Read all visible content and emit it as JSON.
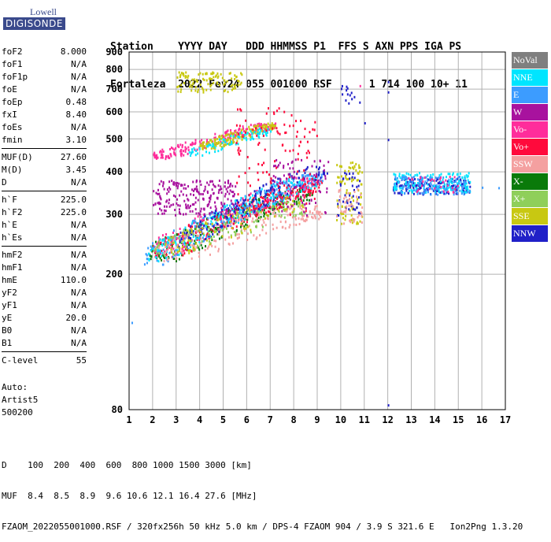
{
  "logo": {
    "line1": "Lowell",
    "line2": "DIGISONDE"
  },
  "header": {
    "line1": "Station    YYYY DAY   DDD HHMMSS P1  FFS S AXN PPS IGA PS",
    "line2": "Fortaleza  2022 Fev24 055 001000 RSF      1 714 100 10+ 11"
  },
  "params": {
    "group1": [
      {
        "k": "foF2",
        "v": "8.000"
      },
      {
        "k": "foF1",
        "v": "N/A"
      },
      {
        "k": "foF1p",
        "v": "N/A"
      },
      {
        "k": "foE",
        "v": "N/A"
      },
      {
        "k": "foEp",
        "v": "0.48"
      },
      {
        "k": "fxI",
        "v": "8.40"
      },
      {
        "k": "foEs",
        "v": "N/A"
      },
      {
        "k": "fmin",
        "v": "3.10"
      }
    ],
    "group2": [
      {
        "k": "MUF(D)",
        "v": "27.60"
      },
      {
        "k": "M(D)",
        "v": "3.45"
      },
      {
        "k": "D",
        "v": "N/A"
      }
    ],
    "group3": [
      {
        "k": "h`F",
        "v": "225.0"
      },
      {
        "k": "h`F2",
        "v": "225.0"
      },
      {
        "k": "h`E",
        "v": "N/A"
      },
      {
        "k": "h`Es",
        "v": "N/A"
      }
    ],
    "group4": [
      {
        "k": "hmF2",
        "v": "N/A"
      },
      {
        "k": "hmF1",
        "v": "N/A"
      },
      {
        "k": "hmE",
        "v": "110.0"
      },
      {
        "k": "yF2",
        "v": "N/A"
      },
      {
        "k": "yF1",
        "v": "N/A"
      },
      {
        "k": "yE",
        "v": "20.0"
      },
      {
        "k": "B0",
        "v": "N/A"
      },
      {
        "k": "B1",
        "v": "N/A"
      }
    ],
    "group5": [
      {
        "k": "C-level",
        "v": "55"
      }
    ]
  },
  "auto": {
    "line1": "Auto:",
    "line2": "Artist5",
    "line3": "500200"
  },
  "legend": [
    {
      "label": "NoVal",
      "color": "#7f7f7f"
    },
    {
      "label": "NNE",
      "color": "#00e5ff"
    },
    {
      "label": "E",
      "color": "#3c9cff"
    },
    {
      "label": "W",
      "color": "#a8129e"
    },
    {
      "label": "Vo-",
      "color": "#ff2d9b"
    },
    {
      "label": "Vo+",
      "color": "#ff0a3c"
    },
    {
      "label": "SSW",
      "color": "#f4a0a0"
    },
    {
      "label": "X-",
      "color": "#0a7a0a"
    },
    {
      "label": "X+",
      "color": "#8fcf5a"
    },
    {
      "label": "SSE",
      "color": "#c8c812"
    },
    {
      "label": "NNW",
      "color": "#2020c8"
    }
  ],
  "footer": {
    "line1": "D    100  200  400  600  800 1000 1500 3000 [km]",
    "line2": "MUF  8.4  8.5  8.9  9.6 10.6 12.1 16.4 27.6 [MHz]",
    "line3": "FZAOM_2022055001000.RSF / 320fx256h 50 kHz 5.0 km / DPS-4 FZAOM 904 / 3.9 S 321.6 E   Ion2Png 1.3.20"
  },
  "chart_data": {
    "type": "scatter",
    "xlim": [
      1,
      17
    ],
    "ylim": [
      80,
      900
    ],
    "y_scale": "log",
    "xticks": [
      1,
      2,
      3,
      4,
      5,
      6,
      7,
      8,
      9,
      10,
      11,
      12,
      13,
      14,
      15,
      16,
      17
    ],
    "yticks": [
      80,
      200,
      300,
      400,
      500,
      600,
      700,
      800,
      900
    ],
    "grid": true,
    "legend_position": "right",
    "clusters": [
      {
        "name": "F-trace X-",
        "color": "#0a7a0a",
        "x0": 1.8,
        "x1": 8.8,
        "y0": 220,
        "y1": 360,
        "n": 260
      },
      {
        "name": "F-trace Vo+",
        "color": "#ff0a3c",
        "x0": 2.0,
        "x1": 9.2,
        "y0": 225,
        "y1": 380,
        "n": 260
      },
      {
        "name": "F-trace Vo-",
        "color": "#ff2d9b",
        "x0": 2.0,
        "x1": 9.0,
        "y0": 230,
        "y1": 390,
        "n": 160
      },
      {
        "name": "F-trace E",
        "color": "#3c9cff",
        "x0": 1.6,
        "x1": 9.2,
        "y0": 215,
        "y1": 400,
        "n": 260
      },
      {
        "name": "F-trace NNE",
        "color": "#00e5ff",
        "x0": 1.8,
        "x1": 9.0,
        "y0": 220,
        "y1": 390,
        "n": 160
      },
      {
        "name": "F-trace SSW",
        "color": "#f4a0a0",
        "x0": 2.0,
        "x1": 9.2,
        "y0": 220,
        "y1": 320,
        "n": 180
      },
      {
        "name": "F-trace X+",
        "color": "#8fcf5a",
        "x0": 2.0,
        "x1": 8.5,
        "y0": 225,
        "y1": 330,
        "n": 100
      },
      {
        "name": "F-trace NNW",
        "color": "#2020c8",
        "x0": 3.0,
        "x1": 9.4,
        "y0": 240,
        "y1": 420,
        "n": 140
      },
      {
        "name": "F-trace SSE",
        "color": "#c8c812",
        "x0": 2.5,
        "x1": 8.5,
        "y0": 230,
        "y1": 340,
        "n": 80
      },
      {
        "name": "W patch",
        "color": "#a8129e",
        "x0": 2.0,
        "x1": 5.5,
        "y0": 300,
        "y1": 380,
        "n": 220
      },
      {
        "name": "W mid",
        "color": "#a8129e",
        "x0": 7.0,
        "x1": 9.5,
        "y0": 300,
        "y1": 440,
        "n": 80
      },
      {
        "name": "Second hop Vo",
        "color": "#ff2d9b",
        "x0": 2.0,
        "x1": 7.2,
        "y0": 440,
        "y1": 560,
        "n": 200
      },
      {
        "name": "Second hop SSE",
        "color": "#c8c812",
        "x0": 4.0,
        "x1": 7.2,
        "y0": 470,
        "y1": 560,
        "n": 160
      },
      {
        "name": "Second hop NNE",
        "color": "#00e5ff",
        "x0": 3.5,
        "x1": 7.0,
        "y0": 450,
        "y1": 540,
        "n": 80
      },
      {
        "name": "Third hop SSE",
        "color": "#c8c812",
        "x0": 3.0,
        "x1": 5.8,
        "y0": 690,
        "y1": 790,
        "n": 110
      },
      {
        "name": "Vertical streaks",
        "color": "#ff0a3c",
        "x0": 5.5,
        "x1": 9.0,
        "y0": 300,
        "y1": 620,
        "n": 120
      },
      {
        "name": "Cluster 10.2",
        "color": "#c8c812",
        "x0": 9.8,
        "x1": 10.9,
        "y0": 280,
        "y1": 430,
        "n": 90
      },
      {
        "name": "Cluster 10.2b",
        "color": "#2020c8",
        "x0": 9.8,
        "x1": 10.8,
        "y0": 300,
        "y1": 400,
        "n": 40
      },
      {
        "name": "Cluster 10.2c",
        "color": "#f4a0a0",
        "x0": 9.8,
        "x1": 10.9,
        "y0": 280,
        "y1": 360,
        "n": 40
      },
      {
        "name": "High 10",
        "color": "#2020c8",
        "x0": 10.0,
        "x1": 10.8,
        "y0": 640,
        "y1": 720,
        "n": 14
      },
      {
        "name": "Band 12-15",
        "color": "#2020c8",
        "x0": 12.2,
        "x1": 15.5,
        "y0": 345,
        "y1": 385,
        "n": 150
      },
      {
        "name": "Band 12-15 cyan",
        "color": "#00e5ff",
        "x0": 12.2,
        "x1": 15.5,
        "y0": 350,
        "y1": 400,
        "n": 150
      },
      {
        "name": "Band 12-15 E",
        "color": "#3c9cff",
        "x0": 12.2,
        "x1": 15.5,
        "y0": 345,
        "y1": 390,
        "n": 110
      },
      {
        "name": "Band 12-15 Vo",
        "color": "#ff2d9b",
        "x0": 12.8,
        "x1": 15.0,
        "y0": 350,
        "y1": 390,
        "n": 30
      }
    ],
    "points": [
      {
        "x": 12.0,
        "y": 740,
        "color": "#2020c8"
      },
      {
        "x": 12.0,
        "y": 690,
        "color": "#2020c8"
      },
      {
        "x": 12.0,
        "y": 500,
        "color": "#2020c8"
      },
      {
        "x": 12.0,
        "y": 83,
        "color": "#2020c8"
      },
      {
        "x": 1.1,
        "y": 145,
        "color": "#3c9cff"
      },
      {
        "x": 10.8,
        "y": 720,
        "color": "#ff2d9b"
      },
      {
        "x": 11.0,
        "y": 560,
        "color": "#2020c8"
      },
      {
        "x": 16.7,
        "y": 361,
        "color": "#3c9cff"
      },
      {
        "x": 16.0,
        "y": 362,
        "color": "#3c9cff"
      }
    ]
  }
}
